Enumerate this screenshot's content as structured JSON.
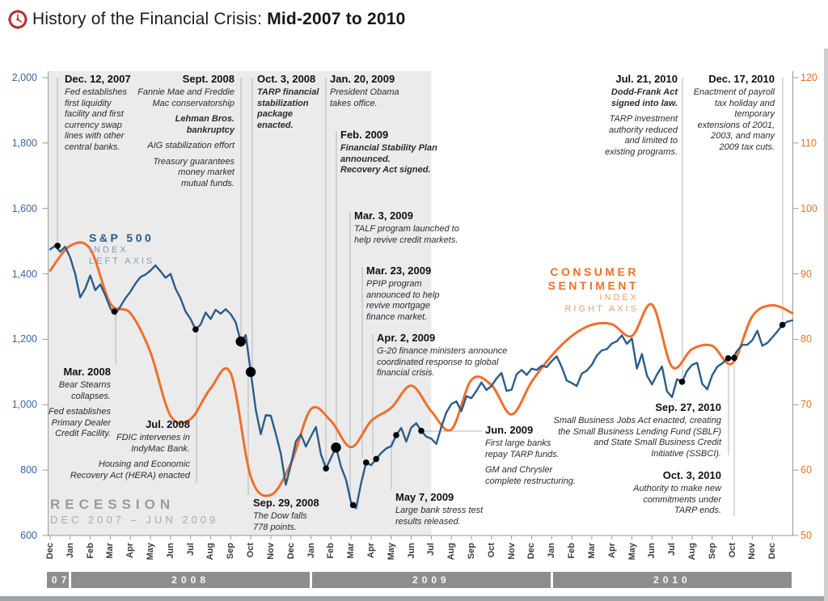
{
  "header": {
    "title": "History of the Financial Crisis:",
    "title_emphasis": "Mid-2007 to 2010"
  },
  "colors": {
    "sp_line": "#2b5c8a",
    "consumer_line": "#ef6f2d",
    "left_axis_text": "#3a64a4",
    "right_axis_text": "#ee7023",
    "recession_band": "#ebebeb",
    "year_bar": "#8d8d8d",
    "dot": "#000000",
    "leader": "#b5b5b5",
    "axis_line": "#9a9a9a",
    "icon_red": "#b5342e"
  },
  "labels": {
    "sp500": {
      "title": "S&P 500",
      "line2": "INDEX",
      "line3": "LEFT AXIS"
    },
    "consumer": {
      "title1": "CONSUMER",
      "title2": "SENTIMENT",
      "line3": "INDEX",
      "line4": "RIGHT AXIS"
    },
    "recession": {
      "title": "RECESSION",
      "range": "DEC 2007 – JUN 2009"
    }
  },
  "chart_data": {
    "type": "line",
    "title": "History of the Financial Crisis: Mid-2007 to 2010",
    "x_unit": "months from Dec 2007",
    "x_month_labels": [
      "Dec",
      "Jan",
      "Feb",
      "Mar",
      "Apr",
      "May",
      "Jun",
      "Jul",
      "Aug",
      "Sep",
      "Oct",
      "Nov",
      "Dec",
      "Jan",
      "Feb",
      "Mar",
      "Apr",
      "May",
      "Jun",
      "Jul",
      "Aug",
      "Sep",
      "Oct",
      "Nov",
      "Dec",
      "Jan",
      "Feb",
      "Mar",
      "Apr",
      "May",
      "Jun",
      "Jul",
      "Aug",
      "Sep",
      "Oct",
      "Nov",
      "Dec"
    ],
    "year_bands": [
      {
        "label": "'07",
        "from": 0,
        "to": 1
      },
      {
        "label": "2008",
        "from": 1,
        "to": 13
      },
      {
        "label": "2009",
        "from": 13,
        "to": 25
      },
      {
        "label": "2010",
        "from": 25,
        "to": 37
      }
    ],
    "left_axis": {
      "name": "S&P 500 Index",
      "min": 600,
      "max": 2000,
      "tick_labels": [
        "2,000",
        "1,800",
        "1,600",
        "1,400",
        "1,200",
        "1,000",
        "800",
        "600"
      ],
      "tick_values": [
        2000,
        1800,
        1600,
        1400,
        1200,
        1000,
        800,
        600
      ]
    },
    "right_axis": {
      "name": "Consumer Sentiment Index",
      "min": 50,
      "max": 120,
      "tick_labels": [
        "120",
        "110",
        "100",
        "90",
        "80",
        "70",
        "60",
        "50"
      ],
      "tick_values": [
        120,
        110,
        100,
        90,
        80,
        70,
        60,
        50
      ]
    },
    "recession": {
      "from_month": 0,
      "to_month": 19
    },
    "series": [
      {
        "name": "S&P 500 Index",
        "axis": "left",
        "points_per_month": 4,
        "values": [
          1475,
          1486,
          1468,
          1483,
          1450,
          1400,
          1328,
          1355,
          1395,
          1350,
          1368,
          1335,
          1295,
          1277,
          1300,
          1325,
          1345,
          1370,
          1390,
          1398,
          1410,
          1426,
          1408,
          1388,
          1400,
          1355,
          1325,
          1285,
          1262,
          1230,
          1245,
          1282,
          1262,
          1290,
          1278,
          1292,
          1277,
          1252,
          1193,
          1213,
          1100,
          985,
          910,
          968,
          966,
          911,
          850,
          755,
          816,
          888,
          909,
          872,
          903,
          932,
          848,
          805,
          838,
          869,
          810,
          770,
          700,
          683,
          760,
          823,
          815,
          834,
          852,
          866,
          873,
          907,
          929,
          887,
          930,
          943,
          920,
          902,
          896,
          880,
          932,
          976,
          1002,
          1010,
          980,
          1026,
          1020,
          1042,
          1068,
          1045,
          1057,
          1080,
          1097,
          1042,
          1046,
          1093,
          1106,
          1091,
          1110,
          1106,
          1119,
          1115,
          1133,
          1148,
          1115,
          1074,
          1066,
          1057,
          1095,
          1104,
          1122,
          1150,
          1166,
          1170,
          1187,
          1194,
          1212,
          1186,
          1202,
          1110,
          1155,
          1089,
          1062,
          1092,
          1117,
          1041,
          1023,
          1078,
          1070,
          1103,
          1122,
          1128,
          1064,
          1047,
          1090,
          1116,
          1126,
          1142,
          1142,
          1165,
          1183,
          1183,
          1197,
          1226,
          1180,
          1189,
          1206,
          1224,
          1244,
          1254,
          1258
        ]
      },
      {
        "name": "Consumer Sentiment Index",
        "axis": "right",
        "points_per_month": 1,
        "values": [
          90.5,
          94.3,
          93.8,
          85.5,
          84,
          78,
          68.3,
          67.8,
          72.5,
          74.8,
          59,
          56.2,
          61,
          69.3,
          67.5,
          63.5,
          67.5,
          69.5,
          72.9,
          69,
          66.2,
          73.8,
          73,
          68.5,
          73.5,
          77.5,
          80.5,
          82.2,
          82.3,
          80.5,
          85.3,
          75.8,
          78.5,
          79,
          76.3,
          83.5,
          85.2,
          84
        ]
      }
    ],
    "events": [
      {
        "id": "dec12-2007",
        "date": "Dec. 12, 2007",
        "body": [
          {
            "style": "i",
            "lines": [
              "Fed establishes",
              "first liquidity",
              "facility and first",
              "currency swap",
              "lines with other",
              "central banks."
            ]
          }
        ],
        "dot": {
          "month": 0.37,
          "value": 1486,
          "size": "small"
        }
      },
      {
        "id": "mar-2008",
        "date": "Mar. 2008",
        "body": [
          {
            "style": "i",
            "lines": [
              "Bear Stearns",
              "collapses."
            ]
          },
          {
            "style": "i",
            "lines": [
              "Fed establishes",
              "Primary Dealer",
              "Credit Facility."
            ]
          }
        ],
        "dot": {
          "month": 3.2,
          "value": 1285,
          "size": "small"
        }
      },
      {
        "id": "jul-2008",
        "date": "Jul. 2008",
        "body": [
          {
            "style": "i",
            "lines": [
              "FDIC intervenes in",
              "IndyMac Bank."
            ]
          },
          {
            "style": "i",
            "lines": [
              "Housing and Economic",
              "Recovery Act (HERA) enacted"
            ]
          }
        ],
        "dot": {
          "month": 7.25,
          "value": 1230,
          "size": "small"
        }
      },
      {
        "id": "sept-2008",
        "date": "Sept. 2008",
        "body": [
          {
            "style": "i",
            "lines": [
              "Fannie Mae and Freddie",
              "Mac conservatorship"
            ]
          },
          {
            "style": "bi",
            "lines": [
              "Lehman Bros.",
              "bankruptcy"
            ]
          },
          {
            "style": "i",
            "lines": [
              "AIG stabilization effort"
            ]
          },
          {
            "style": "i",
            "lines": [
              "Treasury guarantees",
              "money market",
              "mutual funds."
            ]
          }
        ],
        "dot": {
          "month": 9.5,
          "value": 1193,
          "size": "big"
        }
      },
      {
        "id": "sep29-2008",
        "date": "Sep. 29, 2008",
        "body": [
          {
            "style": "i",
            "lines": [
              "The Dow falls",
              "778 points."
            ]
          }
        ],
        "dot": {
          "month": 10.0,
          "value": 1100,
          "size": "big"
        }
      },
      {
        "id": "oct3-2008",
        "date": "Oct. 3, 2008",
        "body": [
          {
            "style": "bi",
            "lines": [
              "TARP financial",
              "stabilization",
              "package",
              "enacted."
            ]
          }
        ],
        "dot": null
      },
      {
        "id": "jan20-2009",
        "date": "Jan. 20, 2009",
        "body": [
          {
            "style": "i",
            "lines": [
              "President Obama",
              "takes office."
            ]
          }
        ],
        "dot": {
          "month": 13.75,
          "value": 805,
          "size": "small"
        }
      },
      {
        "id": "feb-2009",
        "date": "Feb. 2009",
        "body": [
          {
            "style": "bi",
            "lines": [
              "Financial Stability Plan",
              "announced.",
              "Recovery Act signed."
            ]
          }
        ],
        "dot": {
          "month": 14.25,
          "value": 869,
          "size": "big"
        }
      },
      {
        "id": "mar3-2009",
        "date": "Mar. 3, 2009",
        "body": [
          {
            "style": "i",
            "lines": [
              "TALF program launched to",
              "help revive credit markets."
            ]
          }
        ],
        "dot": {
          "month": 15.1,
          "value": 693,
          "size": "small"
        }
      },
      {
        "id": "mar23-2009",
        "date": "Mar. 23, 2009",
        "body": [
          {
            "style": "i",
            "lines": [
              "PPIP program",
              "announced to help",
              "revive mortgage",
              "finance market."
            ]
          }
        ],
        "dot": {
          "month": 15.75,
          "value": 823,
          "size": "small"
        }
      },
      {
        "id": "apr2-2009",
        "date": "Apr. 2, 2009",
        "body": [
          {
            "style": "i",
            "lines": [
              "G-20 finance ministers announce",
              "coordinated response to global",
              "financial crisis."
            ]
          }
        ],
        "dot": {
          "month": 16.25,
          "value": 834,
          "size": "small"
        }
      },
      {
        "id": "may7-2009",
        "date": "May 7, 2009",
        "body": [
          {
            "style": "i",
            "lines": [
              "Large bank stress test",
              "results released."
            ]
          }
        ],
        "dot": {
          "month": 17.25,
          "value": 907,
          "size": "small"
        }
      },
      {
        "id": "jun-2009",
        "date": "Jun. 2009",
        "body": [
          {
            "style": "i",
            "lines": [
              "First large banks",
              "repay TARP funds."
            ]
          },
          {
            "style": "i",
            "lines": [
              "GM and Chrysler",
              "complete restructuring."
            ]
          }
        ],
        "dot": {
          "month": 18.5,
          "value": 920,
          "size": "small"
        }
      },
      {
        "id": "jul21-2010",
        "date": "Jul. 21, 2010",
        "body": [
          {
            "style": "bi",
            "lines": [
              "Dodd-Frank Act",
              "signed into law."
            ]
          },
          {
            "style": "i",
            "lines": [
              "TARP investment",
              "authority reduced",
              "and limited to",
              "existing programs."
            ]
          }
        ],
        "dot": {
          "month": 31.5,
          "value": 1070,
          "size": "small"
        }
      },
      {
        "id": "sep27-2010",
        "date": "Sep. 27, 2010",
        "body": [
          {
            "style": "i",
            "lines": [
              "Small Business Jobs Act enacted, creating",
              "the Small Business Lending Fund (SBLF)",
              "and State Small Business Credit",
              "Initiative (SSBCI)."
            ]
          }
        ],
        "dot": {
          "month": 33.8,
          "value": 1142,
          "size": "small"
        }
      },
      {
        "id": "oct3-2010",
        "date": "Oct. 3, 2010",
        "body": [
          {
            "style": "i",
            "lines": [
              "Authority to make new",
              "commitments under",
              "TARP ends."
            ]
          }
        ],
        "dot": {
          "month": 34.1,
          "value": 1143,
          "size": "small"
        }
      },
      {
        "id": "dec17-2010",
        "date": "Dec. 17, 2010",
        "body": [
          {
            "style": "i",
            "lines": [
              "Enactment of payroll",
              "tax holiday and",
              "temporary",
              "extensions of 2001,",
              "2003, and many",
              "2009 tax cuts."
            ]
          }
        ],
        "dot": {
          "month": 36.5,
          "value": 1244,
          "size": "small"
        }
      }
    ]
  }
}
